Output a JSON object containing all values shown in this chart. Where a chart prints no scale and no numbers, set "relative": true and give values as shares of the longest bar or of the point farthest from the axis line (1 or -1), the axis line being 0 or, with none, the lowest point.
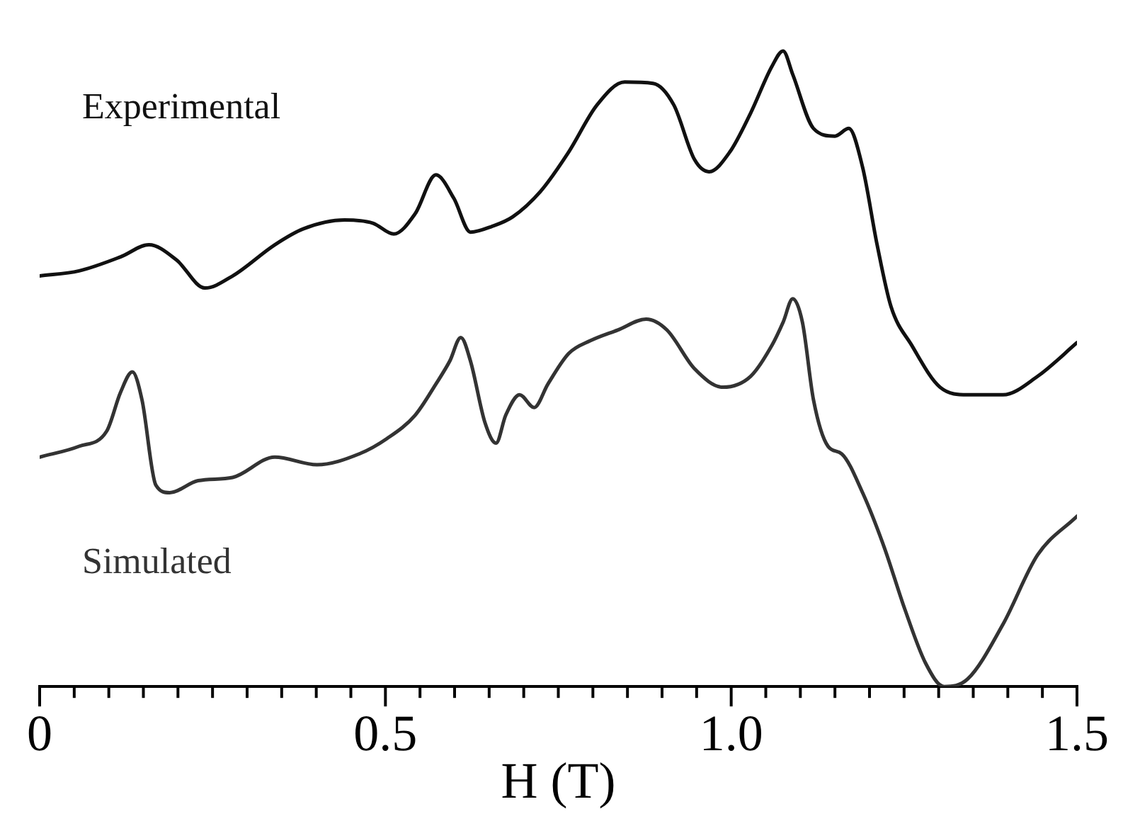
{
  "chart_data": {
    "type": "line",
    "relative": true,
    "xlabel": "H (T)",
    "xlim": [
      0,
      1.5
    ],
    "xticks": [
      0,
      {
        "value": 0.05,
        "label": null
      },
      {
        "value": 0.1,
        "label": null
      },
      {
        "value": 0.15,
        "label": null
      },
      {
        "value": 0.2,
        "label": null
      },
      {
        "value": 0.25,
        "label": null
      },
      {
        "value": 0.3,
        "label": null
      },
      {
        "value": 0.35,
        "label": null
      },
      {
        "value": 0.4,
        "label": null
      },
      {
        "value": 0.45,
        "label": null
      },
      0.5,
      {
        "value": 0.55,
        "label": null
      },
      {
        "value": 0.6,
        "label": null
      },
      {
        "value": 0.65,
        "label": null
      },
      {
        "value": 0.7,
        "label": null
      },
      {
        "value": 0.75,
        "label": null
      },
      {
        "value": 0.8,
        "label": null
      },
      {
        "value": 0.85,
        "label": null
      },
      {
        "value": 0.9,
        "label": null
      },
      {
        "value": 0.95,
        "label": null
      },
      {
        "value": 1,
        "label": "1.0"
      },
      {
        "value": 1.05,
        "label": null
      },
      {
        "value": 1.1,
        "label": null
      },
      {
        "value": 1.15,
        "label": null
      },
      {
        "value": 1.2,
        "label": null
      },
      {
        "value": 1.25,
        "label": null
      },
      {
        "value": 1.3,
        "label": null
      },
      {
        "value": 1.35,
        "label": null
      },
      {
        "value": 1.4,
        "label": null
      },
      {
        "value": 1.45,
        "label": null
      },
      1.5
    ],
    "tick_labels": "x",
    "grid": false,
    "legend": false,
    "marker": "none",
    "line_style": "solid",
    "series": [
      {
        "name": "Experimental",
        "color": "#111111",
        "x": [
          0,
          0.057,
          0.117,
          0.158,
          0.198,
          0.239,
          0.279,
          0.34,
          0.381,
          0.441,
          0.482,
          0.512,
          0.543,
          0.573,
          0.599,
          0.623,
          0.654,
          0.684,
          0.725,
          0.765,
          0.806,
          0.846,
          0.887,
          0.917,
          0.947,
          0.968,
          0.998,
          1.028,
          1.059,
          1.075,
          1.089,
          1.119,
          1.15,
          1.17,
          1.19,
          1.211,
          1.231,
          1.261,
          1.302,
          1.342,
          1.393,
          1.443,
          1.5
        ],
        "values": [
          0.646,
          0.654,
          0.676,
          0.695,
          0.671,
          0.627,
          0.646,
          0.695,
          0.72,
          0.734,
          0.729,
          0.712,
          0.744,
          0.805,
          0.768,
          0.715,
          0.724,
          0.739,
          0.78,
          0.841,
          0.915,
          0.951,
          0.949,
          0.915,
          0.829,
          0.81,
          0.841,
          0.902,
          0.976,
          1,
          0.963,
          0.878,
          0.866,
          0.878,
          0.817,
          0.695,
          0.598,
          0.537,
          0.471,
          0.459,
          0.459,
          0.488,
          0.541
        ]
      },
      {
        "name": "Simulated",
        "color": "#333333",
        "x": [
          0,
          0.057,
          0.097,
          0.117,
          0.134,
          0.148,
          0.168,
          0.188,
          0.229,
          0.279,
          0.34,
          0.401,
          0.462,
          0.502,
          0.543,
          0.573,
          0.593,
          0.609,
          0.623,
          0.644,
          0.66,
          0.674,
          0.694,
          0.715,
          0.735,
          0.765,
          0.796,
          0.836,
          0.877,
          0.907,
          0.947,
          0.988,
          1.028,
          1.059,
          1.075,
          1.089,
          1.103,
          1.119,
          1.14,
          1.16,
          1.19,
          1.221,
          1.251,
          1.281,
          1.308,
          1.342,
          1.393,
          1.443,
          1.5
        ],
        "values": [
          0.361,
          0.378,
          0.402,
          0.463,
          0.495,
          0.451,
          0.317,
          0.305,
          0.324,
          0.329,
          0.361,
          0.349,
          0.366,
          0.39,
          0.427,
          0.476,
          0.512,
          0.549,
          0.512,
          0.415,
          0.383,
          0.427,
          0.459,
          0.439,
          0.476,
          0.524,
          0.544,
          0.561,
          0.578,
          0.561,
          0.5,
          0.471,
          0.488,
          0.537,
          0.573,
          0.61,
          0.573,
          0.451,
          0.378,
          0.366,
          0.305,
          0.22,
          0.122,
          0.037,
          0,
          0.012,
          0.098,
          0.207,
          0.268
        ]
      }
    ]
  }
}
